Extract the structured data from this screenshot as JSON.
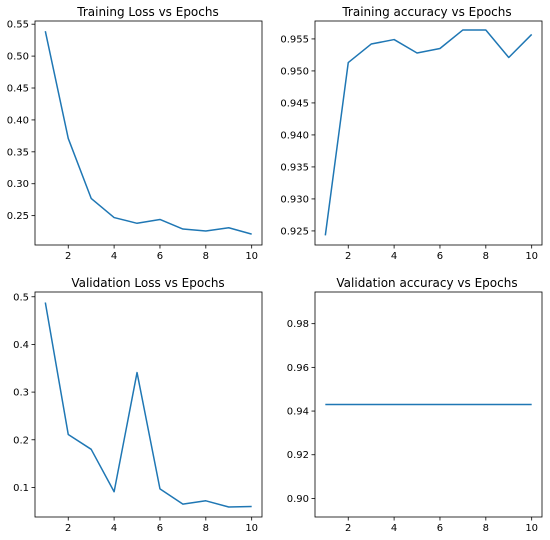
{
  "chart_data": [
    {
      "type": "line",
      "title": "Training Loss vs Epochs",
      "xlabel": "",
      "ylabel": "",
      "x": [
        1,
        2,
        3,
        4,
        5,
        6,
        7,
        8,
        9,
        10
      ],
      "series": [
        {
          "values": [
            0.539,
            0.371,
            0.277,
            0.247,
            0.238,
            0.244,
            0.229,
            0.226,
            0.231,
            0.221
          ]
        }
      ],
      "xlim": [
        0.55,
        10.45
      ],
      "ylim": [
        0.204,
        0.555
      ],
      "xticks": [
        2,
        4,
        6,
        8,
        10
      ],
      "yticks": [
        0.25,
        0.3,
        0.35,
        0.4,
        0.45,
        0.5,
        0.55
      ],
      "ytick_labels": [
        "0.25",
        "0.30",
        "0.35",
        "0.40",
        "0.45",
        "0.50",
        "0.55"
      ],
      "color": "#1f77b4",
      "grid": false
    },
    {
      "type": "line",
      "title": "Training accuracy vs Epochs",
      "xlabel": "",
      "ylabel": "",
      "x": [
        1,
        2,
        3,
        4,
        5,
        6,
        7,
        8,
        9,
        10
      ],
      "series": [
        {
          "values": [
            0.9243,
            0.9513,
            0.9542,
            0.9549,
            0.9528,
            0.9535,
            0.9564,
            0.9564,
            0.9521,
            0.9557
          ]
        }
      ],
      "xlim": [
        0.55,
        10.45
      ],
      "ylim": [
        0.9228,
        0.9578
      ],
      "xticks": [
        2,
        4,
        6,
        8,
        10
      ],
      "yticks": [
        0.925,
        0.93,
        0.935,
        0.94,
        0.945,
        0.95,
        0.955
      ],
      "ytick_labels": [
        "0.925",
        "0.930",
        "0.935",
        "0.940",
        "0.945",
        "0.950",
        "0.955"
      ],
      "color": "#1f77b4",
      "grid": false
    },
    {
      "type": "line",
      "title": "Validation Loss vs Epochs",
      "xlabel": "",
      "ylabel": "",
      "x": [
        1,
        2,
        3,
        4,
        5,
        6,
        7,
        8,
        9,
        10
      ],
      "series": [
        {
          "values": [
            0.488,
            0.211,
            0.18,
            0.091,
            0.341,
            0.097,
            0.065,
            0.072,
            0.059,
            0.06
          ]
        }
      ],
      "xlim": [
        0.55,
        10.45
      ],
      "ylim": [
        0.038,
        0.51
      ],
      "xticks": [
        2,
        4,
        6,
        8,
        10
      ],
      "yticks": [
        0.1,
        0.2,
        0.3,
        0.4,
        0.5
      ],
      "ytick_labels": [
        "0.1",
        "0.2",
        "0.3",
        "0.4",
        "0.5"
      ],
      "color": "#1f77b4",
      "grid": false
    },
    {
      "type": "line",
      "title": "Validation accuracy vs Epochs",
      "xlabel": "",
      "ylabel": "",
      "x": [
        1,
        2,
        3,
        4,
        5,
        6,
        7,
        8,
        9,
        10
      ],
      "series": [
        {
          "values": [
            0.943,
            0.943,
            0.943,
            0.943,
            0.943,
            0.943,
            0.943,
            0.943,
            0.943,
            0.943
          ]
        }
      ],
      "xlim": [
        0.55,
        10.45
      ],
      "ylim": [
        0.8915,
        0.9945
      ],
      "xticks": [
        2,
        4,
        6,
        8,
        10
      ],
      "yticks": [
        0.9,
        0.92,
        0.94,
        0.96,
        0.98
      ],
      "ytick_labels": [
        "0.90",
        "0.92",
        "0.94",
        "0.96",
        "0.98"
      ],
      "color": "#1f77b4",
      "grid": false
    }
  ]
}
